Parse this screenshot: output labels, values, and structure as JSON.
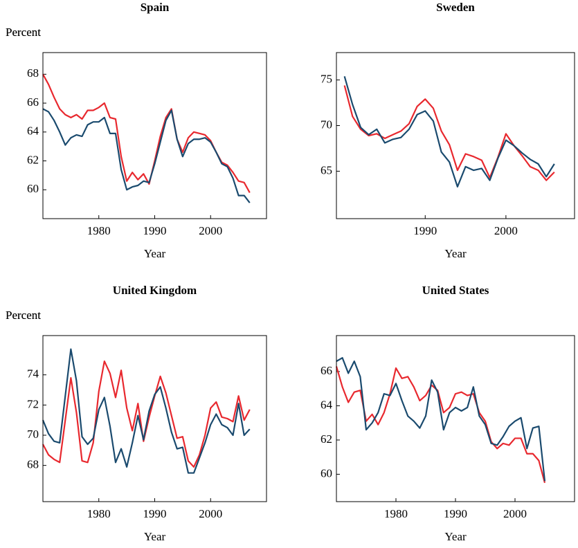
{
  "chart_data": [
    {
      "type": "line",
      "title": "Spain",
      "ylabel": "Percent",
      "xlabel": "Year",
      "x": [
        1970,
        1971,
        1972,
        1973,
        1974,
        1975,
        1976,
        1977,
        1978,
        1979,
        1980,
        1981,
        1982,
        1983,
        1984,
        1985,
        1986,
        1987,
        1988,
        1989,
        1990,
        1991,
        1992,
        1993,
        1994,
        1995,
        1996,
        1997,
        1998,
        1999,
        2000,
        2001,
        2002,
        2003,
        2004,
        2005,
        2006,
        2007
      ],
      "series": [
        {
          "color": "#e8282e",
          "values": [
            68,
            67.3,
            66.4,
            65.6,
            65.2,
            65.0,
            65.2,
            64.9,
            65.5,
            65.5,
            65.7,
            66.0,
            65.0,
            64.9,
            62.3,
            60.6,
            61.2,
            60.7,
            61.1,
            60.4,
            62.0,
            63.7,
            65.0,
            65.6,
            63.5,
            62.6,
            63.6,
            64.0,
            63.9,
            63.8,
            63.4,
            62.6,
            61.9,
            61.7,
            61.2,
            60.6,
            60.5,
            59.8
          ]
        },
        {
          "color": "#1a4a6e",
          "values": [
            65.6,
            65.4,
            64.8,
            64.0,
            63.1,
            63.6,
            63.8,
            63.7,
            64.5,
            64.7,
            64.7,
            65.0,
            63.9,
            63.9,
            61.4,
            60.0,
            60.2,
            60.3,
            60.6,
            60.5,
            61.8,
            63.3,
            64.8,
            65.5,
            63.5,
            62.3,
            63.2,
            63.5,
            63.5,
            63.6,
            63.3,
            62.6,
            61.8,
            61.6,
            60.8,
            59.6,
            59.6,
            59.1
          ]
        }
      ],
      "xlim": [
        1970,
        2010
      ],
      "ylim": [
        58,
        69.5
      ],
      "xticks": [
        1980,
        1990,
        2000
      ],
      "yticks": [
        60,
        62,
        64,
        66,
        68
      ]
    },
    {
      "type": "line",
      "title": "Sweden",
      "ylabel": "Percent",
      "xlabel": "Year",
      "x": [
        1980,
        1981,
        1982,
        1983,
        1984,
        1985,
        1986,
        1987,
        1988,
        1989,
        1990,
        1991,
        1992,
        1993,
        1994,
        1995,
        1996,
        1997,
        1998,
        1999,
        2000,
        2001,
        2002,
        2003,
        2004,
        2005,
        2006
      ],
      "series": [
        {
          "color": "#e8282e",
          "values": [
            74.4,
            71.0,
            69.6,
            68.9,
            69.1,
            68.6,
            69.0,
            69.4,
            70.2,
            72.1,
            72.9,
            71.9,
            69.4,
            67.9,
            65.1,
            66.9,
            66.6,
            66.2,
            64.3,
            66.5,
            69.1,
            67.8,
            66.7,
            65.5,
            65.1,
            64.0,
            64.9
          ]
        },
        {
          "color": "#1a4a6e",
          "values": [
            75.4,
            72.3,
            69.8,
            69.0,
            69.6,
            68.1,
            68.5,
            68.7,
            69.6,
            71.2,
            71.6,
            70.5,
            67.1,
            66.0,
            63.3,
            65.5,
            65.1,
            65.3,
            64.0,
            66.4,
            68.4,
            67.8,
            67.0,
            66.3,
            65.8,
            64.4,
            65.8
          ]
        }
      ],
      "xlim": [
        1979,
        2008.5
      ],
      "ylim": [
        59.8,
        78
      ],
      "xticks": [
        1990,
        2000
      ],
      "yticks": [
        65,
        70,
        75
      ]
    },
    {
      "type": "line",
      "title": "United Kingdom",
      "ylabel": "Percent",
      "xlabel": "Year",
      "x": [
        1970,
        1971,
        1972,
        1973,
        1974,
        1975,
        1976,
        1977,
        1978,
        1979,
        1980,
        1981,
        1982,
        1983,
        1984,
        1985,
        1986,
        1987,
        1988,
        1989,
        1990,
        1991,
        1992,
        1993,
        1994,
        1995,
        1996,
        1997,
        1998,
        1999,
        2000,
        2001,
        2002,
        2003,
        2004,
        2005,
        2006,
        2007
      ],
      "series": [
        {
          "color": "#e8282e",
          "values": [
            69.4,
            68.7,
            68.4,
            68.2,
            71.0,
            73.8,
            71.5,
            68.3,
            68.2,
            69.5,
            72.9,
            74.9,
            74.1,
            72.5,
            74.3,
            71.8,
            70.3,
            72.1,
            69.6,
            71.2,
            72.6,
            73.9,
            72.8,
            71.3,
            69.8,
            69.9,
            68.3,
            67.9,
            68.7,
            70.0,
            71.8,
            72.2,
            71.2,
            71.1,
            70.9,
            72.6,
            71.0,
            71.7
          ]
        },
        {
          "color": "#1a4a6e",
          "values": [
            71.0,
            70.1,
            69.6,
            69.5,
            72.6,
            75.7,
            73.6,
            69.9,
            69.4,
            69.8,
            71.7,
            72.5,
            70.6,
            68.2,
            69.1,
            67.9,
            69.5,
            71.3,
            69.7,
            71.6,
            72.7,
            73.2,
            71.8,
            70.2,
            69.1,
            69.2,
            67.5,
            67.5,
            68.5,
            69.5,
            70.7,
            71.4,
            70.7,
            70.5,
            70.0,
            72.1,
            70.0,
            70.4
          ]
        }
      ],
      "xlim": [
        1970,
        2010
      ],
      "ylim": [
        65.6,
        76.6
      ],
      "xticks": [
        1980,
        1990,
        2000
      ],
      "yticks": [
        68,
        70,
        72,
        74
      ]
    },
    {
      "type": "line",
      "title": "United States",
      "ylabel": "Percent",
      "xlabel": "Year",
      "x": [
        1970,
        1971,
        1972,
        1973,
        1974,
        1975,
        1976,
        1977,
        1978,
        1979,
        1980,
        1981,
        1982,
        1983,
        1984,
        1985,
        1986,
        1987,
        1988,
        1989,
        1990,
        1991,
        1992,
        1993,
        1994,
        1995,
        1996,
        1997,
        1998,
        1999,
        2000,
        2001,
        2002,
        2003,
        2004,
        2005
      ],
      "series": [
        {
          "color": "#e8282e",
          "values": [
            66.3,
            65.1,
            64.2,
            64.8,
            64.9,
            63.1,
            63.5,
            62.9,
            63.6,
            64.7,
            66.2,
            65.6,
            65.7,
            65.1,
            64.3,
            64.6,
            65.2,
            64.9,
            63.6,
            63.9,
            64.7,
            64.8,
            64.6,
            64.7,
            63.6,
            63.1,
            61.9,
            61.5,
            61.8,
            61.7,
            62.1,
            62.1,
            61.2,
            61.2,
            60.8,
            59.5
          ]
        },
        {
          "color": "#1a4a6e",
          "values": [
            66.6,
            66.8,
            65.9,
            66.6,
            65.7,
            62.6,
            63.0,
            63.6,
            64.7,
            64.6,
            65.3,
            64.3,
            63.4,
            63.1,
            62.7,
            63.4,
            65.5,
            64.8,
            62.6,
            63.6,
            63.9,
            63.7,
            63.9,
            65.1,
            63.4,
            62.9,
            61.8,
            61.7,
            62.2,
            62.8,
            63.1,
            63.3,
            61.5,
            62.7,
            62.8,
            59.6
          ]
        }
      ],
      "xlim": [
        1970,
        2010
      ],
      "ylim": [
        58.4,
        68.1
      ],
      "xticks": [
        1980,
        1990,
        2000
      ],
      "yticks": [
        60,
        62,
        64,
        66
      ]
    }
  ]
}
